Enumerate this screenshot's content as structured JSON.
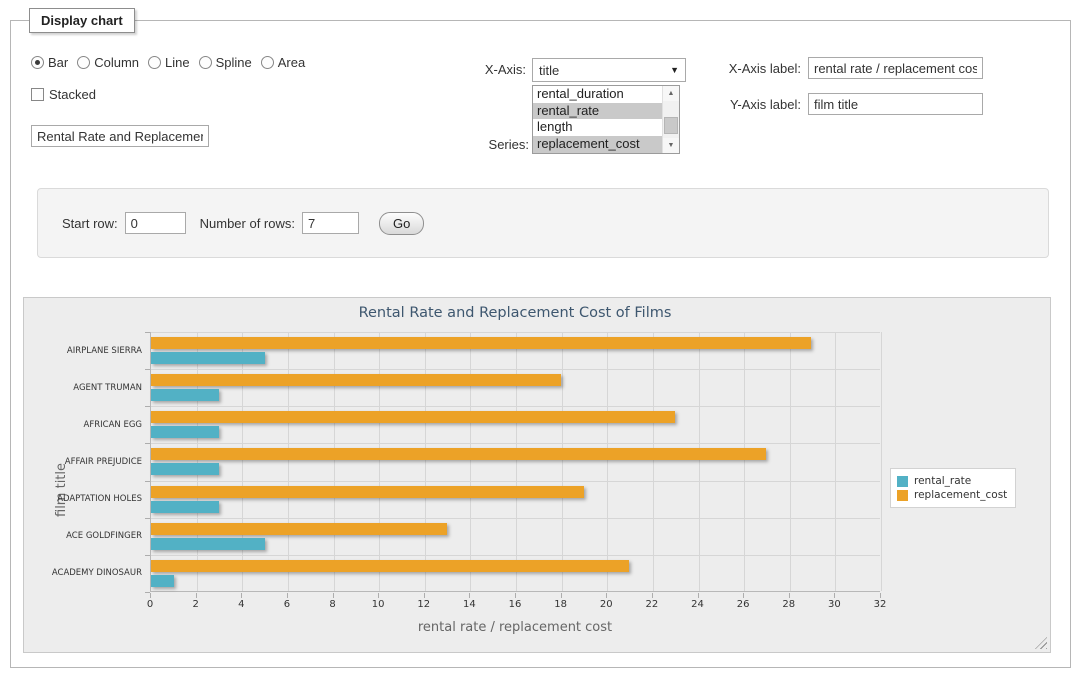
{
  "panel": {
    "legend": "Display chart"
  },
  "chart_type": {
    "options": [
      {
        "label": "Bar",
        "selected": true
      },
      {
        "label": "Column",
        "selected": false
      },
      {
        "label": "Line",
        "selected": false
      },
      {
        "label": "Spline",
        "selected": false
      },
      {
        "label": "Area",
        "selected": false
      }
    ]
  },
  "stacked": {
    "label": "Stacked",
    "checked": false
  },
  "title_input": {
    "value": "Rental Rate and Replacement Cost of Films"
  },
  "x_axis_select": {
    "label": "X-Axis:",
    "value": "title"
  },
  "series_list": {
    "label": "Series:",
    "options": [
      {
        "label": "rental_duration",
        "selected": false
      },
      {
        "label": "rental_rate",
        "selected": true
      },
      {
        "label": "length",
        "selected": false
      },
      {
        "label": "replacement_cost",
        "selected": true
      }
    ]
  },
  "x_axis_label_input": {
    "label": "X-Axis label:",
    "value": "rental rate / replacement cost"
  },
  "y_axis_label_input": {
    "label": "Y-Axis label:",
    "value": "film title"
  },
  "row_controls": {
    "start_row_label": "Start row:",
    "start_row_value": "0",
    "number_of_rows_label": "Number of rows:",
    "number_of_rows_value": "7",
    "go_button_label": "Go"
  },
  "chart_data": {
    "type": "bar",
    "title": "Rental Rate and Replacement Cost of Films",
    "categories": [
      "AIRPLANE SIERRA",
      "AGENT TRUMAN",
      "AFRICAN EGG",
      "AFFAIR PREJUDICE",
      "ADAPTATION HOLES",
      "ACE GOLDFINGER",
      "ACADEMY DINOSAUR"
    ],
    "series": [
      {
        "name": "rental_rate",
        "color": "#52B1C5",
        "values": [
          4.99,
          2.99,
          2.99,
          2.99,
          2.99,
          4.99,
          0.99
        ]
      },
      {
        "name": "replacement_cost",
        "color": "#ECA227",
        "values": [
          28.99,
          17.99,
          22.99,
          26.99,
          18.99,
          12.99,
          20.99
        ]
      }
    ],
    "bar_order": [
      "replacement_cost",
      "rental_rate"
    ],
    "xlabel": "rental rate / replacement cost",
    "ylabel": "film title",
    "xlim": [
      0,
      32
    ],
    "xticks": [
      0,
      2,
      4,
      6,
      8,
      10,
      12,
      14,
      16,
      18,
      20,
      22,
      24,
      26,
      28,
      30,
      32
    ],
    "grid": true,
    "legend_position": "right"
  }
}
